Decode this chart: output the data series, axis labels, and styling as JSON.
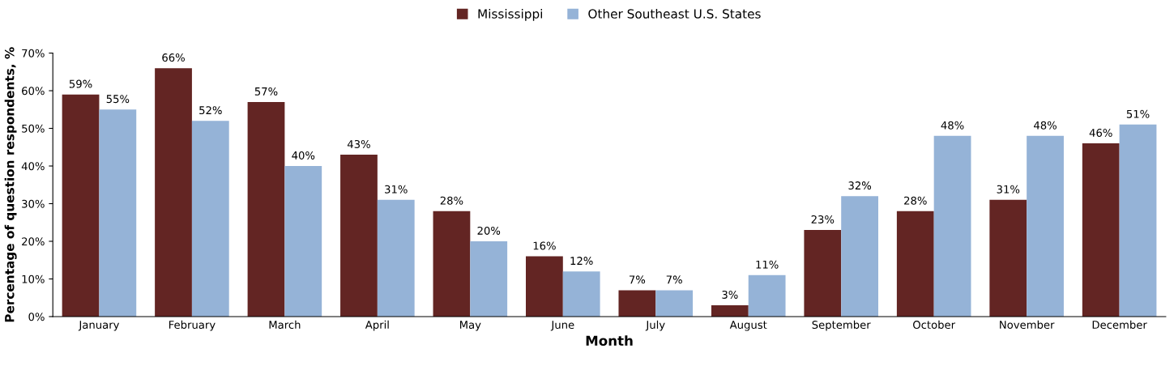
{
  "chart_data": {
    "type": "bar",
    "xlabel": "Month",
    "ylabel": "Percentage of question respondents, %",
    "categories": [
      "January",
      "February",
      "March",
      "April",
      "May",
      "June",
      "July",
      "August",
      "September",
      "October",
      "November",
      "December"
    ],
    "series": [
      {
        "name": "Mississippi",
        "color": "#632523",
        "values": [
          59,
          66,
          57,
          43,
          28,
          16,
          7,
          3,
          23,
          28,
          31,
          46
        ],
        "value_labels": [
          "59%",
          "66%",
          "57%",
          "43%",
          "28%",
          "16%",
          "7%",
          "3%",
          "23%",
          "28%",
          "31%",
          "46%"
        ]
      },
      {
        "name": "Other Southeast U.S. States",
        "color": "#95b3d7",
        "values": [
          55,
          52,
          40,
          31,
          20,
          12,
          7,
          11,
          32,
          48,
          48,
          51
        ],
        "value_labels": [
          "55%",
          "52%",
          "40%",
          "31%",
          "20%",
          "12%",
          "7%",
          "11%",
          "32%",
          "48%",
          "48%",
          "51%"
        ]
      }
    ],
    "ylim": [
      0,
      70
    ],
    "yticks": [
      {
        "value": 0,
        "label": "0%"
      },
      {
        "value": 10,
        "label": "10%"
      },
      {
        "value": 20,
        "label": "20%"
      },
      {
        "value": 30,
        "label": "30%"
      },
      {
        "value": 40,
        "label": "40%"
      },
      {
        "value": 50,
        "label": "50%"
      },
      {
        "value": 60,
        "label": "60%"
      },
      {
        "value": 70,
        "label": "70%"
      }
    ],
    "grid": false,
    "legend": "top"
  }
}
